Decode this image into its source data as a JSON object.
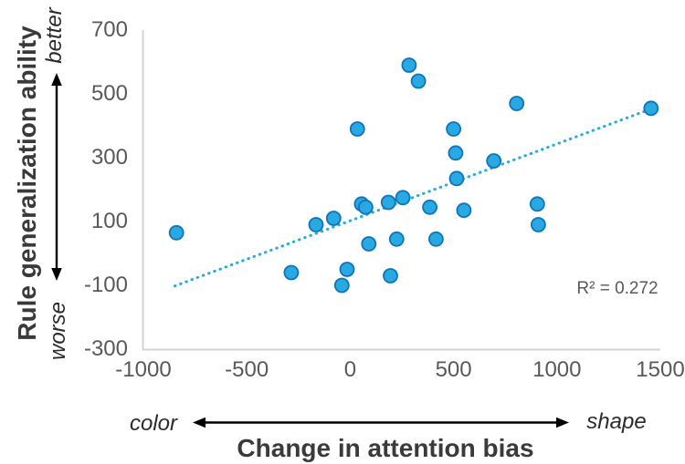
{
  "figure": {
    "y_axis_title": "Rule generalization ability",
    "x_axis_title": "Change in attention bias",
    "y_better_label": "better",
    "y_worse_label": "worse",
    "x_color_label": "color",
    "x_shape_label": "shape",
    "r_squared_label": "R² = 0.272"
  },
  "colors": {
    "point_fill": "#29A9E1",
    "point_stroke": "#0E74BB",
    "trend_line": "#29ABE2",
    "axis_line": "#D4D4D4",
    "tick_text": "#595959",
    "title_text": "#3A3A3C",
    "annotation_text": "#595959",
    "arrow": "#000000"
  },
  "chart_data": {
    "type": "scatter",
    "title": "",
    "xlabel": "Change in attention bias",
    "ylabel": "Rule generalization ability",
    "xlim": [
      -1000,
      1500
    ],
    "ylim": [
      -300,
      700
    ],
    "x_ticks": [
      -1000,
      -500,
      0,
      500,
      1000,
      1500
    ],
    "y_ticks": [
      700,
      500,
      300,
      100,
      -100,
      -300
    ],
    "grid": false,
    "legend": false,
    "x_direction_annotations": {
      "negative": "color",
      "positive": "shape"
    },
    "y_direction_annotations": {
      "positive": "better",
      "negative": "worse"
    },
    "points": [
      [
        -840,
        65
      ],
      [
        -285,
        -60
      ],
      [
        -165,
        90
      ],
      [
        -80,
        110
      ],
      [
        -40,
        -100
      ],
      [
        -15,
        -50
      ],
      [
        35,
        390
      ],
      [
        55,
        155
      ],
      [
        75,
        145
      ],
      [
        90,
        30
      ],
      [
        185,
        160
      ],
      [
        195,
        -70
      ],
      [
        225,
        45
      ],
      [
        255,
        175
      ],
      [
        285,
        590
      ],
      [
        330,
        540
      ],
      [
        385,
        145
      ],
      [
        415,
        45
      ],
      [
        500,
        390
      ],
      [
        510,
        315
      ],
      [
        515,
        235
      ],
      [
        550,
        135
      ],
      [
        695,
        290
      ],
      [
        805,
        470
      ],
      [
        905,
        155
      ],
      [
        910,
        90
      ],
      [
        1455,
        455
      ]
    ],
    "trendline": {
      "style": "dotted",
      "x1": -848,
      "y1": -102,
      "x2": 1422,
      "y2": 445,
      "r_squared": 0.272
    },
    "annotations": [
      {
        "text": "R² = 0.272",
        "x": 660,
        "y": -80
      }
    ]
  }
}
